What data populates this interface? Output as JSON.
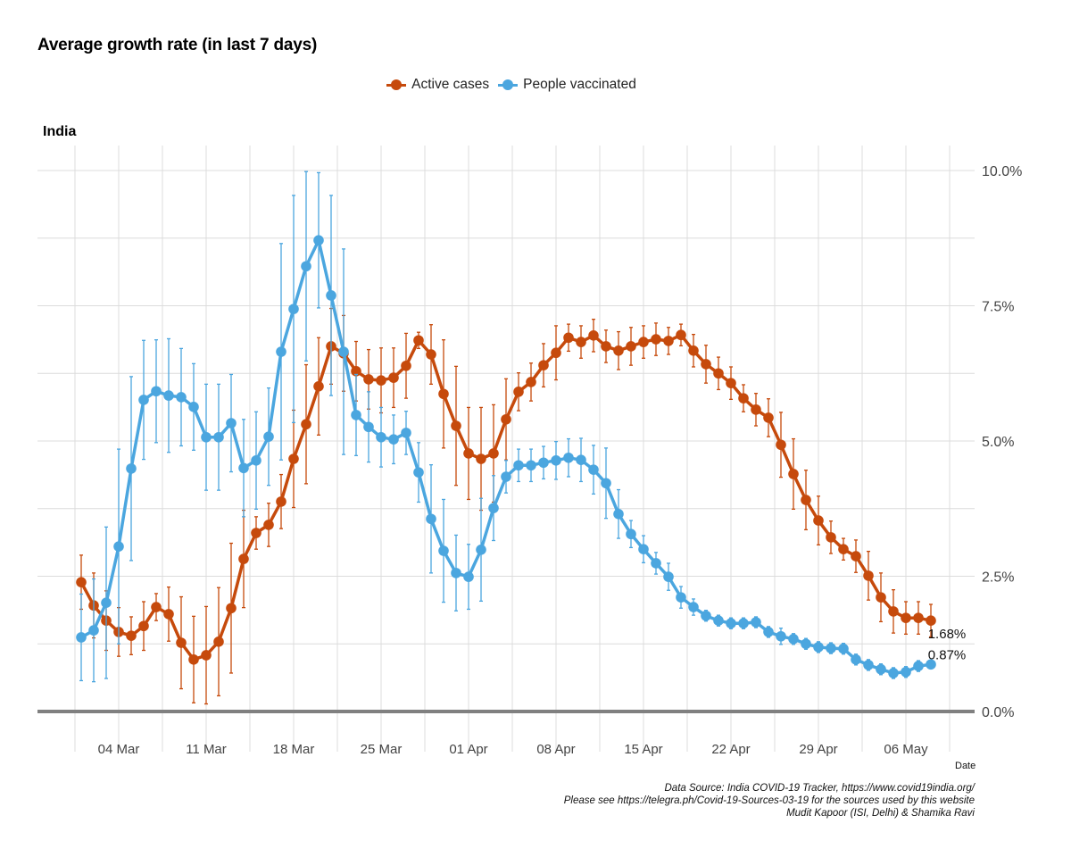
{
  "title": "Average growth rate (in last 7 days)",
  "facet_label": "India",
  "caption": [
    "Data Source: India COVID-19 Tracker, https://www.covid19india.org/",
    "Please see https://telegra.ph/Covid-19-Sources-03-19 for the sources used by this website",
    "Mudit Kapoor (ISI, Delhi) & Shamika Ravi"
  ],
  "colors": {
    "active": "#C64A0C",
    "vaccinated": "#4BA6DF",
    "grid": "#dcdcdc",
    "zero_line": "#808080"
  },
  "chart_data": {
    "type": "line",
    "title": "Average growth rate (in last 7 days)",
    "xlabel": "Date",
    "ylabel": "",
    "ylim": [
      0,
      10
    ],
    "y_ticks": [
      0,
      2.5,
      5,
      7.5,
      10
    ],
    "y_tick_labels": [
      "0.0%",
      "2.5%",
      "5.0%",
      "7.5%",
      "10.0%"
    ],
    "y_axis_position": "right",
    "x_start": "2021-03-01",
    "x_end": "2021-05-08",
    "x_ticks_day_index": [
      3,
      10,
      17,
      24,
      31,
      38,
      45,
      52,
      59,
      66
    ],
    "x_tick_labels": [
      "04 Mar",
      "11 Mar",
      "18 Mar",
      "25 Mar",
      "01 Apr",
      "08 Apr",
      "15 Apr",
      "22 Apr",
      "29 Apr",
      "06 May"
    ],
    "grid": true,
    "legend": {
      "position": "top",
      "entries": [
        "Active cases",
        "People vaccinated"
      ]
    },
    "series": [
      {
        "name": "Active cases",
        "values": [
          2.39,
          1.96,
          1.68,
          1.47,
          1.4,
          1.58,
          1.93,
          1.8,
          1.27,
          0.96,
          1.04,
          1.29,
          1.91,
          2.82,
          3.3,
          3.45,
          3.88,
          4.67,
          5.31,
          6.01,
          6.75,
          6.62,
          6.29,
          6.14,
          6.12,
          6.17,
          6.39,
          6.86,
          6.6,
          5.87,
          5.28,
          4.77,
          4.67,
          4.77,
          5.4,
          5.91,
          6.09,
          6.4,
          6.63,
          6.91,
          6.83,
          6.95,
          6.75,
          6.67,
          6.75,
          6.83,
          6.88,
          6.85,
          6.96,
          6.67,
          6.42,
          6.25,
          6.07,
          5.79,
          5.58,
          5.43,
          4.93,
          4.39,
          3.91,
          3.53,
          3.22,
          3.0,
          2.87,
          2.51,
          2.11,
          1.85,
          1.73,
          1.73,
          1.68
        ],
        "errors": [
          0.5,
          0.6,
          0.55,
          0.45,
          0.35,
          0.45,
          0.25,
          0.5,
          0.85,
          0.8,
          0.9,
          1.0,
          1.2,
          0.9,
          0.3,
          0.4,
          0.5,
          0.9,
          1.1,
          0.9,
          0.7,
          0.7,
          0.55,
          0.55,
          0.6,
          0.55,
          0.6,
          0.15,
          0.55,
          1.0,
          1.1,
          0.85,
          0.95,
          0.9,
          0.75,
          0.35,
          0.35,
          0.4,
          0.5,
          0.25,
          0.3,
          0.3,
          0.3,
          0.35,
          0.35,
          0.3,
          0.3,
          0.25,
          0.2,
          0.3,
          0.35,
          0.3,
          0.3,
          0.25,
          0.3,
          0.35,
          0.6,
          0.65,
          0.55,
          0.45,
          0.3,
          0.2,
          0.3,
          0.45,
          0.45,
          0.4,
          0.3,
          0.3,
          0.3
        ],
        "end_label": "1.68%"
      },
      {
        "name": "People vaccinated",
        "values": [
          1.37,
          1.5,
          2.01,
          3.05,
          4.49,
          5.76,
          5.92,
          5.84,
          5.81,
          5.63,
          5.07,
          5.07,
          5.33,
          4.5,
          4.64,
          5.08,
          6.65,
          7.44,
          8.23,
          8.71,
          7.69,
          6.65,
          5.48,
          5.26,
          5.07,
          5.03,
          5.15,
          4.42,
          3.56,
          2.97,
          2.56,
          2.49,
          2.99,
          3.76,
          4.34,
          4.55,
          4.55,
          4.6,
          4.64,
          4.69,
          4.65,
          4.47,
          4.22,
          3.65,
          3.28,
          3.0,
          2.74,
          2.49,
          2.11,
          1.93,
          1.77,
          1.68,
          1.63,
          1.63,
          1.65,
          1.47,
          1.39,
          1.34,
          1.25,
          1.19,
          1.17,
          1.16,
          0.96,
          0.86,
          0.78,
          0.71,
          0.73,
          0.84,
          0.87
        ],
        "errors": [
          0.8,
          0.95,
          1.4,
          1.8,
          1.7,
          1.1,
          0.95,
          1.05,
          0.9,
          0.8,
          0.98,
          0.98,
          0.9,
          0.9,
          0.9,
          0.9,
          2.0,
          2.1,
          1.75,
          1.25,
          1.85,
          1.9,
          0.75,
          0.65,
          0.55,
          0.45,
          0.4,
          0.55,
          1.0,
          0.95,
          0.7,
          0.6,
          0.95,
          0.6,
          0.3,
          0.3,
          0.3,
          0.3,
          0.35,
          0.35,
          0.4,
          0.45,
          0.65,
          0.45,
          0.25,
          0.25,
          0.2,
          0.25,
          0.2,
          0.15,
          0.1,
          0.1,
          0.1,
          0.1,
          0.1,
          0.1,
          0.15,
          0.1,
          0.1,
          0.1,
          0.1,
          0.1,
          0.1,
          0.1,
          0.1,
          0.1,
          0.1,
          0.1,
          0.05
        ],
        "end_label": "0.87%"
      }
    ]
  }
}
